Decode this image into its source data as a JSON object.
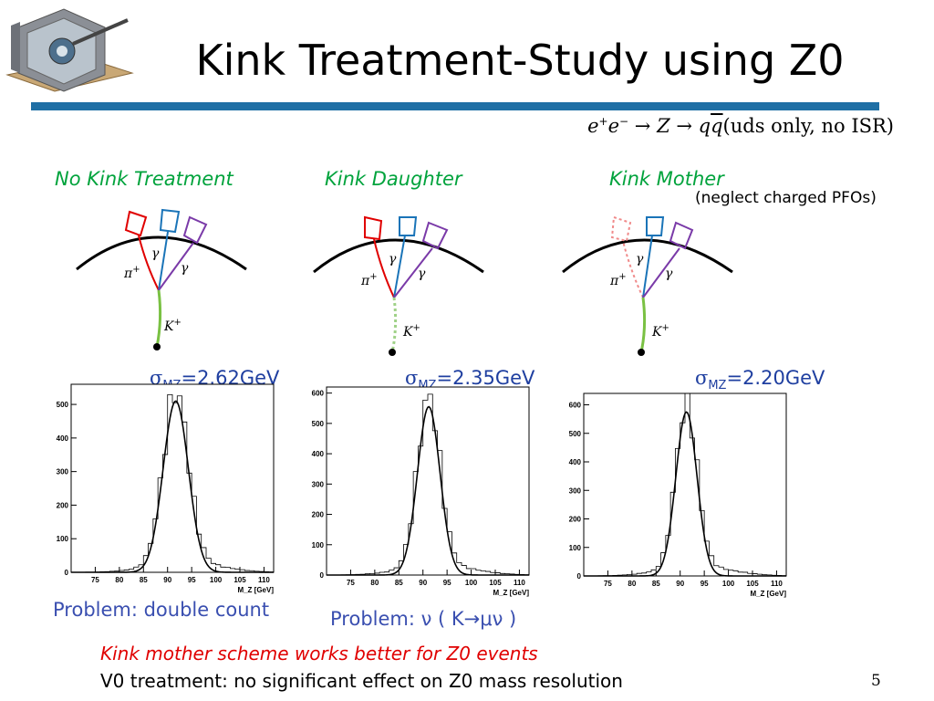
{
  "slide": {
    "title": "Kink Treatment-Study using Z0",
    "formula": {
      "e1": "e",
      "sup1": "+",
      "e2": "e",
      "sup2": "−",
      "arrow1": "→",
      "z": "Z",
      "arrow2": "→",
      "q1": "q",
      "q2": "q",
      "note": "(uds only, no ISR)"
    },
    "columns": [
      {
        "heading": "No Kink Treatment"
      },
      {
        "heading": "Kink  Daughter"
      },
      {
        "heading": "Kink  Mother",
        "note": "(neglect charged PFOs)"
      }
    ],
    "diagram_labels": {
      "pion": "π",
      "pion_charge": "+",
      "kaon": "K",
      "kaon_charge": "+",
      "photon": "γ"
    },
    "sigmas": [
      {
        "symbol": "σ",
        "sub": "MZ",
        "value": "=2.62GeV"
      },
      {
        "symbol": "σ",
        "sub": "MZ",
        "value": "=2.35GeV"
      },
      {
        "symbol": "σ",
        "sub": "MZ",
        "value": "=2.20GeV"
      }
    ],
    "problems": [
      "Problem: double count",
      "Problem:  ν ( K→μν )"
    ],
    "conclusion_red": "Kink mother scheme works better for Z0 events",
    "conclusion_black": "V0 treatment: no significant effect on Z0 mass resolution",
    "page_number": "5",
    "colors": {
      "title_rule": "#1f6fa5",
      "heading": "#00a33c",
      "sigma": "#1f3fa0",
      "problem": "#3a4fb0",
      "red": "#e00000",
      "kaon_track": "#7ac143"
    }
  },
  "chart_data": [
    {
      "type": "line",
      "title": "",
      "xlabel": "M_Z [GeV]",
      "ylabel": "",
      "xlim": [
        70,
        112
      ],
      "ylim": [
        0,
        560
      ],
      "x_ticks": [
        75,
        80,
        85,
        90,
        95,
        100,
        105,
        110
      ],
      "y_ticks": [
        0,
        100,
        200,
        300,
        400,
        500
      ],
      "peak": 91.7,
      "sigma": 2.62,
      "amplitude": 510
    },
    {
      "type": "line",
      "title": "",
      "xlabel": "M_Z [GeV]",
      "ylabel": "",
      "xlim": [
        70,
        112
      ],
      "ylim": [
        0,
        620
      ],
      "x_ticks": [
        75,
        80,
        85,
        90,
        95,
        100,
        105,
        110
      ],
      "y_ticks": [
        0,
        100,
        200,
        300,
        400,
        500,
        600
      ],
      "peak": 91.2,
      "sigma": 2.35,
      "amplitude": 555
    },
    {
      "type": "line",
      "title": "",
      "xlabel": "M_Z [GeV]",
      "ylabel": "",
      "xlim": [
        70,
        112
      ],
      "ylim": [
        0,
        640
      ],
      "x_ticks": [
        75,
        80,
        85,
        90,
        95,
        100,
        105,
        110
      ],
      "y_ticks": [
        0,
        100,
        200,
        300,
        400,
        500,
        600
      ],
      "peak": 91.3,
      "sigma": 2.2,
      "amplitude": 575
    }
  ]
}
